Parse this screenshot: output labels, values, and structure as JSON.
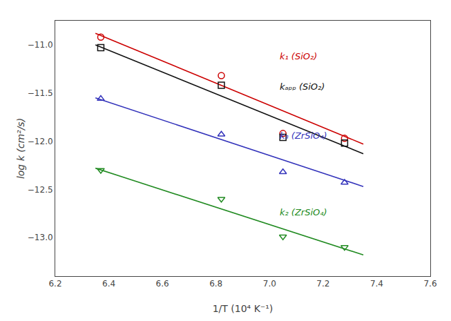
{
  "chart_data": {
    "type": "scatter",
    "xlabel": "1/T (10⁴ K⁻¹)",
    "ylabel": "log k (cm²/s)",
    "xlim": [
      6.2,
      7.6
    ],
    "ylim": [
      -13.4,
      -10.75
    ],
    "xticks": [
      6.2,
      6.4,
      6.6,
      6.8,
      {
        "value": 7.0,
        "label": "7.0"
      },
      7.2,
      7.4,
      7.6
    ],
    "yticks": [
      {
        "value": -13.0,
        "label": "−13.0"
      },
      {
        "value": -12.5,
        "label": "−12.5"
      },
      {
        "value": -12.0,
        "label": "−12.0"
      },
      {
        "value": -11.5,
        "label": "−11.5"
      },
      {
        "value": -11.0,
        "label": "−11.0"
      }
    ],
    "grid": false,
    "series": [
      {
        "name": "k₁ (SiO₂)",
        "color": "#cc0000",
        "marker": "circle",
        "x": [
          6.37,
          6.82,
          7.05,
          7.28
        ],
        "values": [
          -10.92,
          -11.32,
          -11.92,
          -11.97
        ],
        "line_x": [
          6.35,
          7.35
        ],
        "line_values": [
          -10.88,
          -12.03
        ]
      },
      {
        "name": "kₐₚₚ (SiO₂)",
        "color": "#111111",
        "marker": "square",
        "x": [
          6.37,
          6.82,
          7.05,
          7.28
        ],
        "values": [
          -11.03,
          -11.42,
          -11.96,
          -12.02
        ],
        "line_x": [
          6.35,
          7.35
        ],
        "line_values": [
          -11.0,
          -12.13
        ]
      },
      {
        "name": "k₃ (ZrSiO₄)",
        "color": "#3333bb",
        "marker": "triangle-up",
        "x": [
          6.37,
          6.82,
          7.05,
          7.28
        ],
        "values": [
          -11.56,
          -11.93,
          -12.32,
          -12.43
        ],
        "line_x": [
          6.35,
          7.35
        ],
        "line_values": [
          -11.55,
          -12.47
        ]
      },
      {
        "name": "k₂ (ZrSiO₄)",
        "color": "#228B22",
        "marker": "triangle-down",
        "x": [
          6.37,
          6.82,
          7.05,
          7.28
        ],
        "values": [
          -12.3,
          -12.6,
          -12.99,
          -13.1
        ],
        "line_x": [
          6.35,
          7.35
        ],
        "line_values": [
          -12.28,
          -13.18
        ]
      }
    ]
  }
}
